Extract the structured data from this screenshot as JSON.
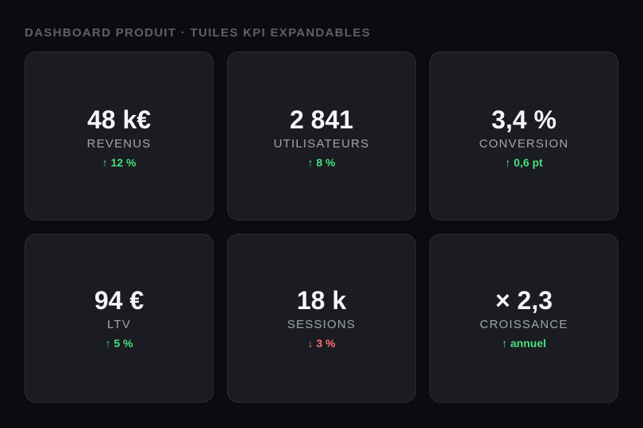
{
  "header": {
    "title": "DASHBOARD PRODUIT · TUILES KPI EXPANDABLES"
  },
  "tiles": [
    {
      "value": "48 k€",
      "label": "REVENUS",
      "delta": "↑ 12 %",
      "trend": "up"
    },
    {
      "value": "2 841",
      "label": "UTILISATEURS",
      "delta": "↑ 8 %",
      "trend": "up"
    },
    {
      "value": "3,4 %",
      "label": "CONVERSION",
      "delta": "↑ 0,6 pt",
      "trend": "up"
    },
    {
      "value": "94 €",
      "label": "LTV",
      "delta": "↑ 5 %",
      "trend": "up"
    },
    {
      "value": "18 k",
      "label": "SESSIONS",
      "delta": "↓ 3 %",
      "trend": "down"
    },
    {
      "value": "× 2,3",
      "label": "CROISSANCE",
      "delta": "↑ annuel",
      "trend": "up"
    }
  ],
  "colors": {
    "background": "#0b0c0f",
    "tile": "#1a1c21",
    "up": "#4ade80",
    "down": "#f87171"
  }
}
